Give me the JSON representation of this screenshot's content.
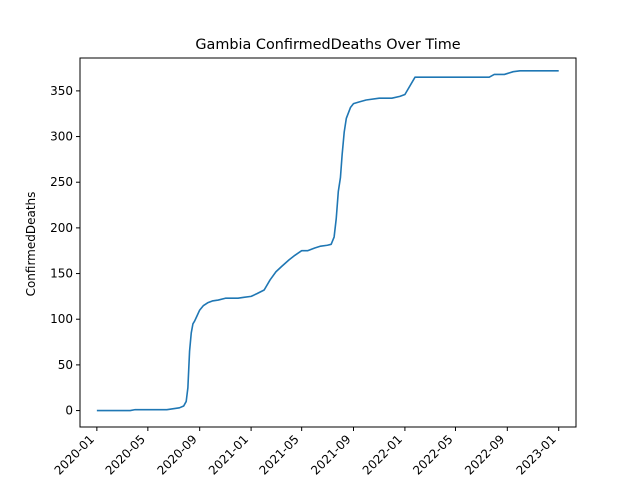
{
  "chart_data": {
    "type": "line",
    "title": "Gambia  ConfirmedDeaths Over Time",
    "xlabel": "",
    "ylabel": "ConfirmedDeaths",
    "xlim": [
      "2019-11-22",
      "2023-02-11"
    ],
    "ylim": [
      -18,
      386
    ],
    "grid": false,
    "line_color": "#1f77b4",
    "x_ticks": [
      "2020-01-01",
      "2020-05-01",
      "2020-09-01",
      "2021-01-01",
      "2021-05-01",
      "2021-09-01",
      "2022-01-01",
      "2022-05-01",
      "2022-09-01",
      "2023-01-01"
    ],
    "x_tick_labels": [
      "2020-01",
      "2020-05",
      "2020-09",
      "2021-01",
      "2021-05",
      "2021-09",
      "2022-01",
      "2022-05",
      "2022-09",
      "2023-01"
    ],
    "y_ticks": [
      0,
      50,
      100,
      150,
      200,
      250,
      300,
      350
    ],
    "y_tick_labels": [
      "0",
      "50",
      "100",
      "150",
      "200",
      "250",
      "300",
      "350"
    ],
    "series": [
      {
        "name": "",
        "x": [
          "2020-01-01",
          "2020-03-20",
          "2020-04-01",
          "2020-06-15",
          "2020-07-01",
          "2020-07-15",
          "2020-07-25",
          "2020-07-31",
          "2020-08-04",
          "2020-08-08",
          "2020-08-12",
          "2020-08-16",
          "2020-08-20",
          "2020-08-25",
          "2020-09-01",
          "2020-09-10",
          "2020-09-20",
          "2020-10-01",
          "2020-10-15",
          "2020-11-01",
          "2020-11-15",
          "2020-12-01",
          "2020-12-15",
          "2021-01-01",
          "2021-01-15",
          "2021-02-01",
          "2021-02-15",
          "2021-03-01",
          "2021-03-15",
          "2021-04-01",
          "2021-04-15",
          "2021-05-01",
          "2021-05-15",
          "2021-06-01",
          "2021-06-15",
          "2021-07-01",
          "2021-07-10",
          "2021-07-17",
          "2021-07-22",
          "2021-07-27",
          "2021-08-01",
          "2021-08-05",
          "2021-08-10",
          "2021-08-15",
          "2021-08-20",
          "2021-08-25",
          "2021-09-01",
          "2021-09-15",
          "2021-10-01",
          "2021-11-01",
          "2021-12-01",
          "2021-12-20",
          "2022-01-01",
          "2022-01-25",
          "2022-02-01",
          "2022-03-01",
          "2022-05-01",
          "2022-07-20",
          "2022-08-01",
          "2022-08-25",
          "2022-09-15",
          "2022-10-01",
          "2023-01-01"
        ],
        "y": [
          0,
          0,
          1,
          1,
          2,
          3,
          5,
          10,
          25,
          65,
          85,
          95,
          98,
          103,
          110,
          115,
          118,
          120,
          121,
          123,
          123,
          123,
          124,
          125,
          128,
          132,
          143,
          152,
          158,
          165,
          170,
          175,
          175,
          178,
          180,
          181,
          182,
          190,
          210,
          240,
          255,
          280,
          305,
          320,
          326,
          332,
          336,
          338,
          340,
          342,
          342,
          344,
          346,
          365,
          365,
          365,
          365,
          365,
          368,
          368,
          371,
          372,
          372
        ]
      }
    ]
  }
}
